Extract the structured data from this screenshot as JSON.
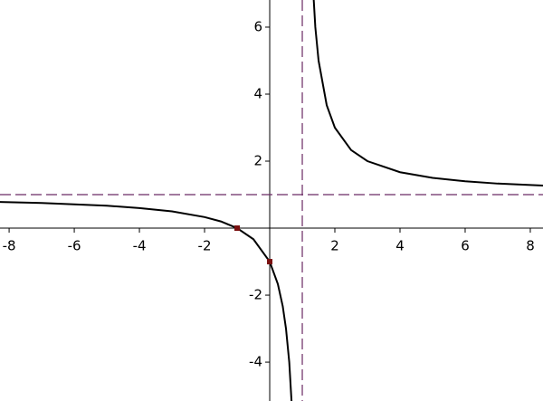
{
  "chart_data": {
    "type": "line",
    "x": [
      -8.3,
      -7,
      -6,
      -5,
      -4,
      -3,
      -2,
      -1.5,
      -1,
      -0.5,
      0,
      0.25,
      0.4,
      0.5,
      0.6,
      0.7,
      1,
      1.3,
      1.4,
      1.5,
      1.75,
      2,
      2.5,
      3,
      4,
      5,
      6,
      7,
      8.4
    ],
    "series": [
      {
        "color": "#000000",
        "values": [
          0.78,
          0.75,
          0.71,
          0.67,
          0.6,
          0.5,
          0.33,
          0.2,
          0,
          -0.33,
          -1,
          -1.67,
          -2.33,
          -3,
          -4,
          -5.67,
          null,
          7.67,
          6,
          5,
          3.67,
          3,
          2.33,
          2,
          1.67,
          1.5,
          1.4,
          1.33,
          1.27
        ]
      }
    ],
    "points": {
      "x": [
        -1,
        0
      ],
      "y": [
        0,
        -1
      ],
      "color": "#7a1010"
    },
    "asymptotes": {
      "x": 1,
      "y": 1,
      "color": "#6b2a63"
    },
    "xlim": [
      -8.28,
      8.39
    ],
    "ylim": [
      -5.16,
      6.81
    ],
    "xticks": [
      -8,
      -6,
      -4,
      -2,
      2,
      4,
      6,
      8
    ],
    "yticks": [
      -4,
      -2,
      2,
      4,
      6
    ]
  }
}
